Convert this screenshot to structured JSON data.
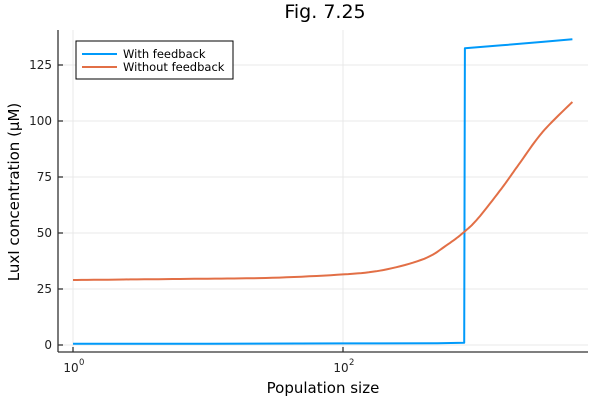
{
  "chart_data": {
    "type": "line",
    "title": "Fig. 7.25",
    "xlabel": "Population size",
    "ylabel": "LuxI concentration (μM)",
    "xscale": "log10",
    "xlim": [
      0.78,
      7900
    ],
    "ylim": [
      -3,
      141
    ],
    "x_ticks": [
      {
        "value": 1,
        "label": "10",
        "exp": "0"
      },
      {
        "value": 100,
        "label": "10",
        "exp": "2"
      }
    ],
    "y_ticks": [
      0,
      25,
      50,
      75,
      100,
      125
    ],
    "grid": true,
    "legend_position": "top-left",
    "series": [
      {
        "name": "With feedback",
        "color": "#009AFA",
        "points": [
          [
            1,
            0.6
          ],
          [
            10,
            0.6
          ],
          [
            100,
            0.7
          ],
          [
            500,
            0.8
          ],
          [
            790,
            1.0
          ],
          [
            800,
            132.5
          ],
          [
            1500,
            133.8
          ],
          [
            3000,
            135.3
          ],
          [
            5000,
            136.5
          ]
        ]
      },
      {
        "name": "Without feedback",
        "color": "#E26F46",
        "points": [
          [
            1,
            29.0
          ],
          [
            3,
            29.3
          ],
          [
            10,
            29.6
          ],
          [
            30,
            30.0
          ],
          [
            100,
            31.5
          ],
          [
            200,
            33.5
          ],
          [
            400,
            38.5
          ],
          [
            600,
            45.0
          ],
          [
            790,
            50.5
          ],
          [
            1000,
            56.5
          ],
          [
            1500,
            70.0
          ],
          [
            2000,
            80.5
          ],
          [
            3000,
            95.0
          ],
          [
            5000,
            108.5
          ]
        ]
      }
    ]
  },
  "legend": {
    "items": [
      {
        "label": "With feedback",
        "color": "#009AFA"
      },
      {
        "label": "Without feedback",
        "color": "#E26F46"
      }
    ]
  }
}
